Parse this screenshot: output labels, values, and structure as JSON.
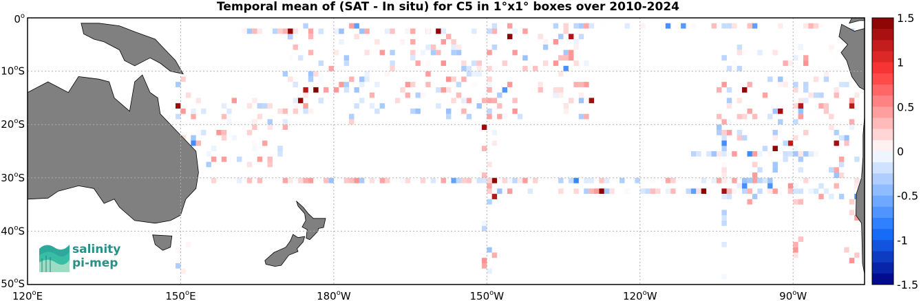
{
  "title": "Temporal mean of (SAT - In situ) for C5 in 1°x1° boxes over 2010-2024",
  "map": {
    "lon_range": [
      120,
      284
    ],
    "lat_range": [
      -50,
      0
    ],
    "lon_ticks": [
      {
        "value": 120,
        "num": "120",
        "hem": "E"
      },
      {
        "value": 150,
        "num": "150",
        "hem": "E"
      },
      {
        "value": 180,
        "num": "180",
        "hem": "W"
      },
      {
        "value": 210,
        "num": "150",
        "hem": "W"
      },
      {
        "value": 240,
        "num": "120",
        "hem": "W"
      },
      {
        "value": 270,
        "num": "90",
        "hem": "W"
      }
    ],
    "lat_ticks": [
      {
        "value": 0,
        "num": "0",
        "hem": ""
      },
      {
        "value": -10,
        "num": "10",
        "hem": "S"
      },
      {
        "value": -20,
        "num": "20",
        "hem": "S"
      },
      {
        "value": -30,
        "num": "30",
        "hem": "S"
      },
      {
        "value": -40,
        "num": "40",
        "hem": "S"
      },
      {
        "value": -50,
        "num": "50",
        "hem": "S"
      }
    ],
    "degree_symbol": "o",
    "grid": true,
    "land_color": "#808080",
    "ocean_color": "#ffffff"
  },
  "colorbar": {
    "range": [
      -1.5,
      1.5
    ],
    "ticks": [
      "1.5",
      "1",
      "0.5",
      "0",
      "-0.5",
      "-1",
      "-1.5"
    ],
    "tick_values": [
      1.5,
      1,
      0.5,
      0,
      -0.5,
      -1,
      -1.5
    ],
    "levels": 24,
    "colormap": "blue-white-red"
  },
  "logo": {
    "line1": "salinity",
    "line2": "pi-mep",
    "color": "#2a8f86"
  }
}
